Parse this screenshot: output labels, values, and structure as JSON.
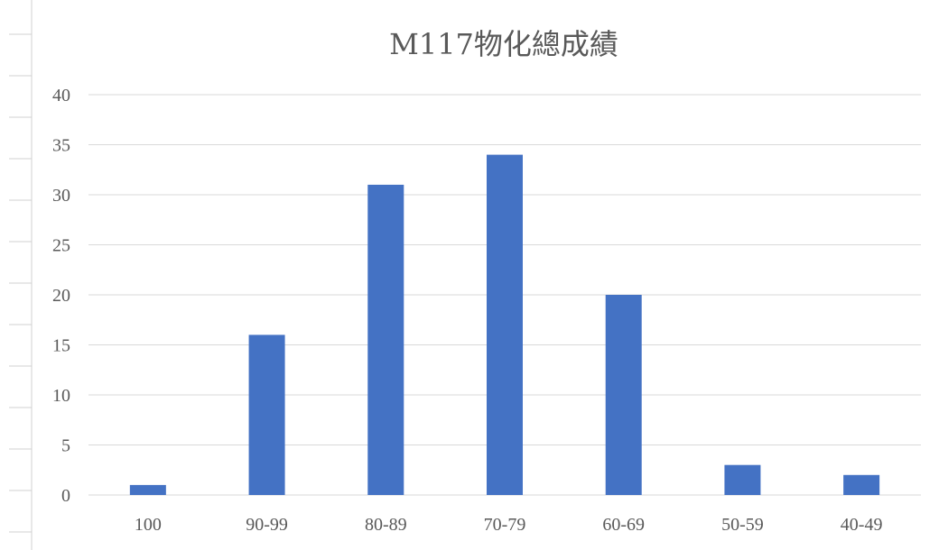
{
  "chart_data": {
    "type": "bar",
    "title": "M117物化總成績",
    "xlabel": "",
    "ylabel": "",
    "categories": [
      "100",
      "90-99",
      "80-89",
      "70-79",
      "60-69",
      "50-59",
      "40-49"
    ],
    "values": [
      1,
      16,
      31,
      34,
      20,
      3,
      2
    ],
    "ylim": [
      0,
      40
    ],
    "yticks": [
      "0",
      "5",
      "10",
      "15",
      "20",
      "25",
      "30",
      "35",
      "40"
    ],
    "grid": true,
    "legend": "none",
    "bar_color": "#4472c4"
  }
}
